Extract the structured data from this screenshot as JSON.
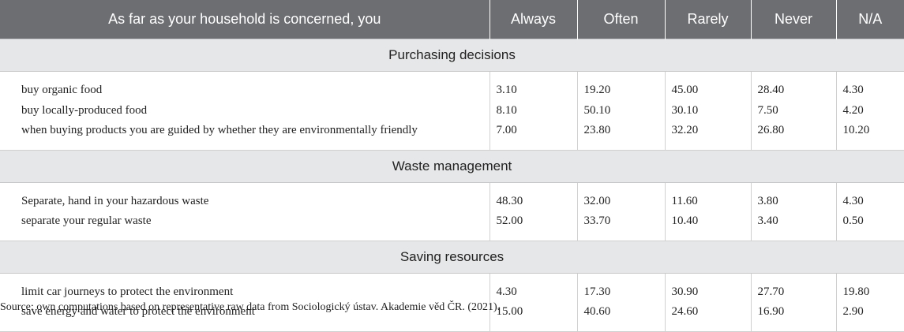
{
  "header": [
    "As far as your household is concerned, you",
    "Always",
    "Often",
    "Rarely",
    "Never",
    "N/A"
  ],
  "sections": [
    {
      "title": "Purchasing decisions",
      "rows": [
        {
          "label": "buy organic food",
          "values": [
            "3.10",
            "19.20",
            "45.00",
            "28.40",
            "4.30"
          ]
        },
        {
          "label": "buy locally-produced food",
          "values": [
            "8.10",
            "50.10",
            "30.10",
            "7.50",
            "4.20"
          ]
        },
        {
          "label": "when buying products you are guided by whether they are environmentally friendly",
          "values": [
            "7.00",
            "23.80",
            "32.20",
            "26.80",
            "10.20"
          ]
        }
      ]
    },
    {
      "title": "Waste management",
      "rows": [
        {
          "label": "Separate, hand in your hazardous waste",
          "values": [
            "48.30",
            "32.00",
            "11.60",
            "3.80",
            "4.30"
          ]
        },
        {
          "label": "separate your regular waste",
          "values": [
            "52.00",
            "33.70",
            "10.40",
            "3.40",
            "0.50"
          ]
        }
      ]
    },
    {
      "title": "Saving resources",
      "rows": [
        {
          "label": "limit car journeys to protect the environment",
          "values": [
            "4.30",
            "17.30",
            "30.90",
            "27.70",
            "19.80"
          ]
        },
        {
          "label": "save energy and water to protect the environment",
          "values": [
            "15.00",
            "40.60",
            "24.60",
            "16.90",
            "2.90"
          ]
        }
      ]
    }
  ],
  "source": "Source: own computations based on representative raw data from Sociologický ústav. Akademie věd ČR. (2021)."
}
